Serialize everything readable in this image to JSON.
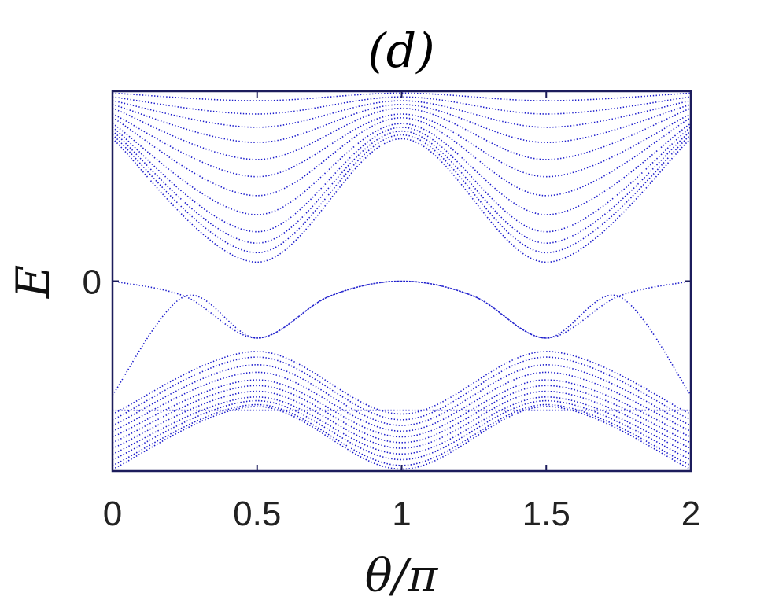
{
  "chart_data": {
    "type": "scatter",
    "title": "(d)",
    "xlabel": "θ/π",
    "ylabel": "E",
    "xlim": [
      0,
      2
    ],
    "ylim": [
      -1,
      1
    ],
    "xticks": [
      0,
      0.5,
      1,
      1.5,
      2
    ],
    "xtick_labels": [
      "0",
      "0.5",
      "1",
      "1.5",
      "2"
    ],
    "yticks": [
      0
    ],
    "ytick_labels": [
      "0"
    ],
    "grid": false,
    "marker_color": "#1a1acc",
    "axes_color": "#1c1c5c",
    "series": [
      {
        "description": "upper bands",
        "x": [
          0,
          0.5,
          1,
          1.5,
          2
        ],
        "lines": [
          [
            0.99,
            0.95,
            0.99,
            0.95,
            0.99
          ],
          [
            0.97,
            0.88,
            0.97,
            0.88,
            0.97
          ],
          [
            0.95,
            0.81,
            0.95,
            0.81,
            0.95
          ],
          [
            0.93,
            0.73,
            0.93,
            0.73,
            0.93
          ],
          [
            0.91,
            0.64,
            0.91,
            0.64,
            0.91
          ],
          [
            0.88,
            0.55,
            0.88,
            0.55,
            0.88
          ],
          [
            0.86,
            0.45,
            0.86,
            0.45,
            0.86
          ],
          [
            0.83,
            0.35,
            0.83,
            0.35,
            0.83
          ],
          [
            0.81,
            0.26,
            0.81,
            0.26,
            0.81
          ],
          [
            0.79,
            0.2,
            0.79,
            0.2,
            0.79
          ],
          [
            0.77,
            0.15,
            0.77,
            0.15,
            0.77
          ],
          [
            0.75,
            0.1,
            0.75,
            0.1,
            0.75
          ]
        ]
      },
      {
        "description": "zero-energy arcs",
        "x": [
          0,
          0.25,
          0.5,
          0.75,
          1,
          1.25,
          1.5,
          1.75,
          2
        ],
        "lines": [
          [
            0,
            -0.08,
            -0.3,
            -0.08,
            0,
            -0.08,
            -0.3,
            -0.08,
            0
          ],
          [
            -0.6,
            -0.08,
            -0.3,
            -0.08,
            0,
            -0.08,
            -0.3,
            -0.08,
            -0.6
          ]
        ]
      },
      {
        "description": "flat band",
        "x": [
          0,
          2
        ],
        "lines": [
          [
            -0.68,
            -0.68
          ]
        ]
      },
      {
        "description": "lower bands",
        "x": [
          0,
          0.5,
          1,
          1.5,
          2
        ],
        "lines": [
          [
            -0.7,
            -0.37,
            -0.7,
            -0.37,
            -0.7
          ],
          [
            -0.73,
            -0.4,
            -0.73,
            -0.4,
            -0.73
          ],
          [
            -0.76,
            -0.44,
            -0.76,
            -0.44,
            -0.76
          ],
          [
            -0.79,
            -0.48,
            -0.79,
            -0.48,
            -0.79
          ],
          [
            -0.82,
            -0.52,
            -0.82,
            -0.52,
            -0.82
          ],
          [
            -0.85,
            -0.55,
            -0.85,
            -0.55,
            -0.85
          ],
          [
            -0.88,
            -0.58,
            -0.88,
            -0.58,
            -0.88
          ],
          [
            -0.91,
            -0.61,
            -0.91,
            -0.61,
            -0.91
          ],
          [
            -0.94,
            -0.63,
            -0.94,
            -0.63,
            -0.94
          ],
          [
            -0.97,
            -0.65,
            -0.97,
            -0.65,
            -0.97
          ],
          [
            -0.99,
            -0.66,
            -0.99,
            -0.66,
            -0.99
          ]
        ]
      }
    ]
  }
}
